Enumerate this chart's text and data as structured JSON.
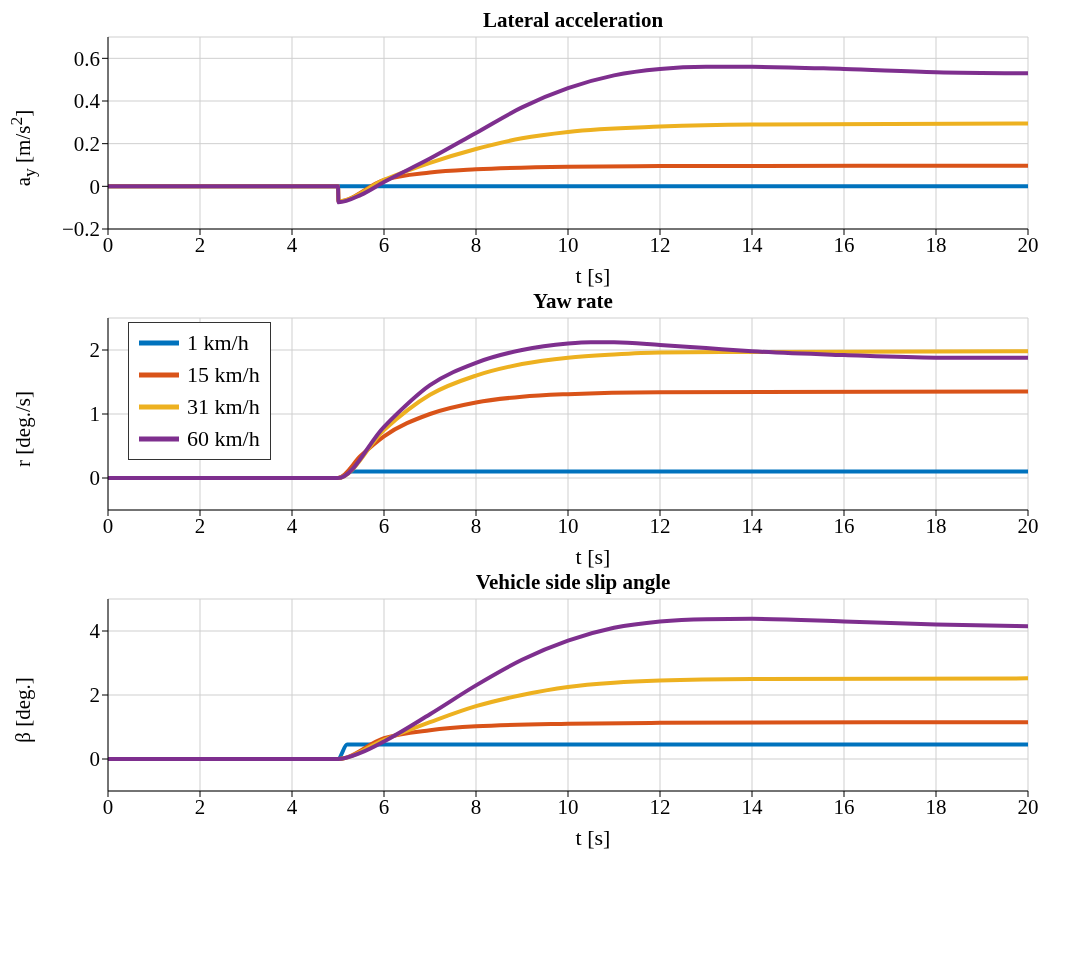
{
  "chart_data": [
    {
      "type": "line",
      "title": "Lateral acceleration",
      "xlabel": "t [s]",
      "ylabel": "a$_{y}$ [m/s$^{2}$]",
      "xlim": [
        0,
        20
      ],
      "xticks": [
        0,
        2,
        4,
        6,
        8,
        10,
        12,
        14,
        16,
        18,
        20
      ],
      "ylim": [
        -0.2,
        0.7
      ],
      "yticks": [
        -0.2,
        0,
        0.2,
        0.4,
        0.6
      ],
      "grid": true,
      "legend": false,
      "marker": "none",
      "line_style": "solid",
      "series": [
        {
          "color": "#0072bd",
          "x": [
            0,
            5,
            5.1,
            20
          ],
          "values": [
            0,
            0,
            0,
            0
          ]
        },
        {
          "color": "#d95319",
          "x": [
            0,
            5,
            5.01,
            6,
            7,
            8,
            10,
            12,
            20
          ],
          "values": [
            0,
            0,
            -0.07,
            0.03,
            0.065,
            0.08,
            0.092,
            0.095,
            0.097
          ]
        },
        {
          "color": "#edb120",
          "x": [
            0,
            5,
            5.01,
            6,
            7,
            8,
            9,
            10,
            12,
            14,
            20
          ],
          "values": [
            0,
            0,
            -0.07,
            0.03,
            0.11,
            0.175,
            0.225,
            0.255,
            0.28,
            0.29,
            0.295
          ]
        },
        {
          "color": "#7e2f8e",
          "x": [
            0,
            5,
            5.01,
            5.5,
            6,
            7,
            8,
            9,
            10,
            11,
            12,
            13,
            14,
            16,
            18,
            20
          ],
          "values": [
            0,
            0,
            -0.075,
            -0.04,
            0.02,
            0.13,
            0.25,
            0.37,
            0.46,
            0.52,
            0.55,
            0.56,
            0.56,
            0.55,
            0.535,
            0.53
          ]
        }
      ]
    },
    {
      "type": "line",
      "title": "Yaw rate",
      "xlabel": "t [s]",
      "ylabel": "r [deg./s]",
      "xlim": [
        0,
        20
      ],
      "xticks": [
        0,
        2,
        4,
        6,
        8,
        10,
        12,
        14,
        16,
        18,
        20
      ],
      "ylim": [
        -0.5,
        2.5
      ],
      "yticks": [
        0,
        1,
        2
      ],
      "grid": true,
      "legend": "top left",
      "marker": "none",
      "line_style": "solid",
      "series": [
        {
          "name": "1 km/h",
          "color": "#0072bd",
          "x": [
            0,
            5,
            5.3,
            20
          ],
          "values": [
            0,
            0,
            0.1,
            0.1
          ]
        },
        {
          "name": "15 km/h",
          "color": "#d95319",
          "x": [
            0,
            5,
            5.5,
            6,
            7,
            8,
            9,
            10,
            12,
            20
          ],
          "values": [
            0,
            0,
            0.35,
            0.65,
            1.0,
            1.18,
            1.27,
            1.31,
            1.34,
            1.35
          ]
        },
        {
          "name": "31 km/h",
          "color": "#edb120",
          "x": [
            0,
            5,
            6,
            7,
            8,
            9,
            10,
            11,
            12,
            14,
            20
          ],
          "values": [
            0,
            0,
            0.75,
            1.3,
            1.6,
            1.78,
            1.88,
            1.93,
            1.96,
            1.97,
            1.98
          ]
        },
        {
          "name": "60 km/h",
          "color": "#7e2f8e",
          "x": [
            0,
            5,
            6,
            7,
            8,
            9,
            10,
            10.5,
            11,
            12,
            13,
            14,
            16,
            18,
            20
          ],
          "values": [
            0,
            0,
            0.8,
            1.45,
            1.8,
            2.0,
            2.1,
            2.12,
            2.12,
            2.08,
            2.03,
            1.98,
            1.92,
            1.88,
            1.88
          ]
        }
      ]
    },
    {
      "type": "line",
      "title": "Vehicle side slip angle",
      "xlabel": "t [s]",
      "ylabel": "β [deg.]",
      "xlim": [
        0,
        20
      ],
      "xticks": [
        0,
        2,
        4,
        6,
        8,
        10,
        12,
        14,
        16,
        18,
        20
      ],
      "ylim": [
        -1,
        5
      ],
      "yticks": [
        0,
        2,
        4
      ],
      "grid": true,
      "legend": false,
      "marker": "none",
      "line_style": "solid",
      "series": [
        {
          "color": "#0072bd",
          "x": [
            0,
            5,
            5.2,
            20
          ],
          "values": [
            0,
            0,
            0.45,
            0.45
          ]
        },
        {
          "color": "#d95319",
          "x": [
            0,
            5,
            6,
            7,
            8,
            10,
            12,
            20
          ],
          "values": [
            0,
            0,
            0.65,
            0.9,
            1.02,
            1.1,
            1.13,
            1.15
          ]
        },
        {
          "color": "#edb120",
          "x": [
            0,
            5,
            6,
            7,
            8,
            9,
            10,
            11,
            12,
            14,
            20
          ],
          "values": [
            0,
            0,
            0.6,
            1.15,
            1.65,
            2.0,
            2.25,
            2.38,
            2.45,
            2.5,
            2.52
          ]
        },
        {
          "color": "#7e2f8e",
          "x": [
            0,
            5,
            5.5,
            6,
            7,
            8,
            9,
            10,
            11,
            12,
            13,
            14,
            16,
            18,
            20
          ],
          "values": [
            0,
            0,
            0.2,
            0.55,
            1.4,
            2.3,
            3.1,
            3.7,
            4.1,
            4.3,
            4.37,
            4.38,
            4.3,
            4.2,
            4.15
          ]
        }
      ]
    }
  ]
}
